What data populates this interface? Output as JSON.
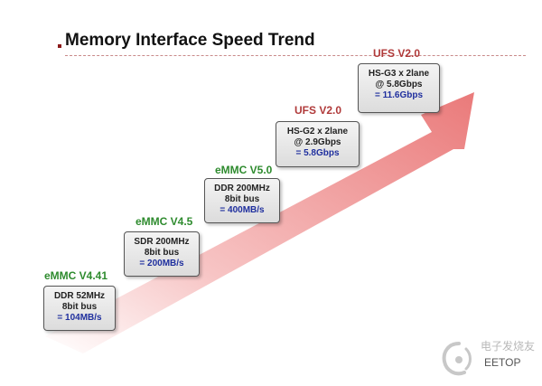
{
  "title": "Memory Interface Speed Trend",
  "stages": [
    {
      "label": "eMMC V4.41",
      "lines": [
        "DDR 52MHz",
        "8bit bus"
      ],
      "speed": "= 104MB/s",
      "label_color": "#2e8b2e"
    },
    {
      "label": "eMMC V4.5",
      "lines": [
        "SDR 200MHz",
        "8bit bus"
      ],
      "speed": "= 200MB/s",
      "label_color": "#2e8b2e"
    },
    {
      "label": "eMMC V5.0",
      "lines": [
        "DDR 200MHz",
        "8bit bus"
      ],
      "speed": "= 400MB/s",
      "label_color": "#2e8b2e"
    },
    {
      "label": "UFS V2.0",
      "lines": [
        "HS-G2 x 2lane",
        "@ 2.9Gbps"
      ],
      "speed": "= 5.8Gbps",
      "label_color": "#b03a3a"
    },
    {
      "label": "UFS V2.0",
      "lines": [
        "HS-G3 x 2lane",
        "@ 5.8Gbps"
      ],
      "speed": "= 11.6Gbps",
      "label_color": "#b03a3a"
    }
  ],
  "watermark": {
    "text": "电子发烧友",
    "sub": "EETOP"
  },
  "colors": {
    "arrow": "#ee8a8a",
    "speed_text": "#1f2f9e"
  }
}
